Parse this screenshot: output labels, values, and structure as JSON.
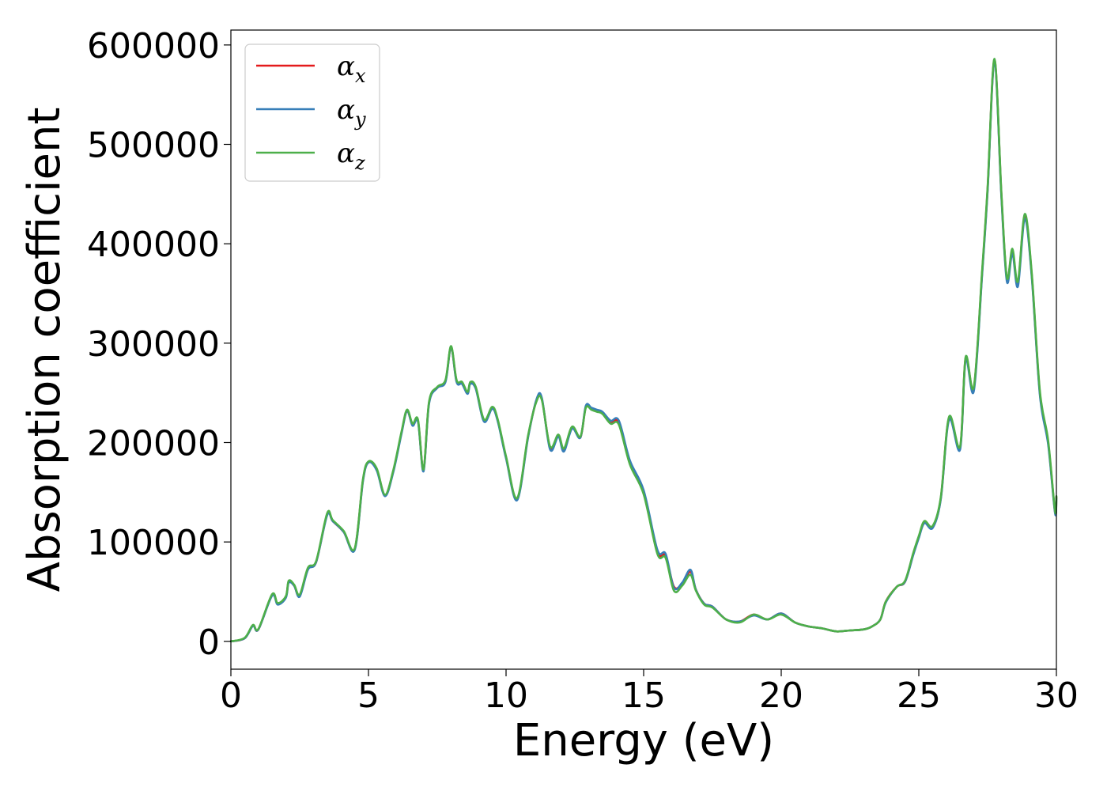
{
  "chart_data": {
    "type": "line",
    "xlabel": "Energy (eV)",
    "ylabel": "Absorption coefficient",
    "xlim": [
      0,
      30
    ],
    "ylim": [
      -28000,
      615000
    ],
    "x_ticks": [
      0,
      5,
      10,
      15,
      20,
      25,
      30
    ],
    "x_tick_labels": [
      "0",
      "5",
      "10",
      "15",
      "20",
      "25",
      "30"
    ],
    "y_ticks": [
      0,
      100000,
      200000,
      300000,
      400000,
      500000,
      600000
    ],
    "y_tick_labels": [
      "0",
      "100000",
      "200000",
      "300000",
      "400000",
      "500000",
      "600000"
    ],
    "grid": false,
    "legend_position": "top-left",
    "legend": [
      {
        "base": "α",
        "sub": "x",
        "color": "#e41a1c"
      },
      {
        "base": "α",
        "sub": "y",
        "color": "#377eb8"
      },
      {
        "base": "α",
        "sub": "z",
        "color": "#4daf4a"
      }
    ],
    "x": [
      0,
      0.5,
      0.8,
      1.0,
      1.5,
      1.7,
      2.0,
      2.1,
      2.3,
      2.5,
      2.8,
      3.1,
      3.5,
      3.7,
      4.1,
      4.5,
      4.8,
      5.0,
      5.3,
      5.6,
      5.9,
      6.2,
      6.4,
      6.6,
      6.8,
      7.0,
      7.2,
      7.5,
      7.8,
      8.0,
      8.2,
      8.4,
      8.6,
      8.7,
      8.9,
      9.2,
      9.5,
      9.7,
      10.0,
      10.4,
      10.8,
      11.1,
      11.3,
      11.6,
      11.9,
      12.1,
      12.4,
      12.7,
      12.9,
      13.1,
      13.3,
      13.5,
      13.8,
      14.1,
      14.5,
      15.0,
      15.5,
      15.8,
      16.1,
      16.4,
      16.7,
      16.9,
      17.2,
      17.5,
      18.0,
      18.5,
      19.0,
      19.5,
      20.0,
      20.5,
      21.0,
      21.5,
      22.0,
      22.5,
      23.0,
      23.3,
      23.6,
      23.8,
      24.2,
      24.5,
      24.8,
      25.0,
      25.2,
      25.5,
      25.8,
      26.1,
      26.5,
      26.7,
      27.0,
      27.3,
      27.5,
      27.75,
      28.0,
      28.2,
      28.4,
      28.6,
      28.85,
      29.1,
      29.4,
      29.7,
      29.95,
      30.0
    ],
    "series": [
      {
        "name": "αx",
        "color": "#e41a1c",
        "values": [
          0,
          3000,
          16000,
          12000,
          47000,
          38000,
          45000,
          60000,
          56000,
          46000,
          73000,
          80000,
          128000,
          121000,
          110000,
          93000,
          162000,
          180000,
          173000,
          147000,
          171000,
          210000,
          232000,
          218000,
          222000,
          172000,
          240000,
          255000,
          262000,
          296000,
          262000,
          260000,
          250000,
          260000,
          255000,
          222000,
          235000,
          222000,
          185000,
          143000,
          206000,
          242000,
          244000,
          195000,
          207000,
          193000,
          215000,
          205000,
          236000,
          234000,
          232000,
          230000,
          220000,
          220000,
          180000,
          150000,
          90000,
          86000,
          55000,
          58000,
          70000,
          52000,
          38000,
          35000,
          22000,
          20000,
          27000,
          22000,
          28000,
          19000,
          15000,
          13000,
          10000,
          11000,
          12000,
          15000,
          22000,
          40000,
          55000,
          60000,
          88000,
          105000,
          120000,
          115000,
          144000,
          225000,
          195000,
          285000,
          255000,
          370000,
          455000,
          585000,
          450000,
          365000,
          393000,
          360000,
          428000,
          370000,
          250000,
          200000,
          130000,
          145000
        ]
      },
      {
        "name": "αy",
        "color": "#377eb8",
        "values": [
          0,
          3000,
          15500,
          12000,
          46000,
          37000,
          44000,
          59000,
          56000,
          45000,
          72000,
          80000,
          127000,
          121000,
          110000,
          92000,
          161000,
          180000,
          172000,
          146000,
          170000,
          209000,
          232000,
          217000,
          221000,
          171000,
          239000,
          255000,
          261000,
          296000,
          261000,
          259000,
          249000,
          259000,
          254000,
          221000,
          234000,
          221000,
          184000,
          142000,
          205000,
          243000,
          245000,
          193000,
          206000,
          191000,
          214000,
          205000,
          237000,
          235000,
          233000,
          231000,
          222000,
          222000,
          182000,
          152000,
          92000,
          88000,
          54000,
          59000,
          72000,
          52000,
          38000,
          35000,
          22000,
          20000,
          26000,
          22000,
          28000,
          19000,
          15000,
          13000,
          10000,
          11000,
          12000,
          15000,
          22000,
          39000,
          55000,
          60000,
          87000,
          104000,
          119000,
          114000,
          143000,
          223000,
          193000,
          283000,
          252000,
          368000,
          453000,
          583000,
          448000,
          362000,
          390000,
          357000,
          425000,
          368000,
          248000,
          198000,
          129000,
          144000
        ]
      },
      {
        "name": "αz",
        "color": "#4daf4a",
        "values": [
          0,
          3500,
          16500,
          12500,
          47500,
          38500,
          45500,
          61000,
          57000,
          47000,
          74000,
          81000,
          129000,
          122000,
          111000,
          93500,
          163000,
          181000,
          174000,
          147500,
          172000,
          211000,
          233000,
          219000,
          223000,
          173000,
          241000,
          256000,
          263000,
          297000,
          263000,
          261000,
          251000,
          261000,
          256000,
          223000,
          236000,
          223000,
          186000,
          144000,
          207000,
          241000,
          243000,
          196000,
          208000,
          194000,
          216000,
          206000,
          235000,
          233000,
          231000,
          229000,
          219000,
          218000,
          178000,
          148000,
          88000,
          84000,
          51000,
          56000,
          67000,
          51000,
          37000,
          34000,
          22000,
          19000,
          27000,
          22000,
          27000,
          19000,
          15000,
          13000,
          10000,
          11000,
          12000,
          15000,
          22000,
          40000,
          55000,
          61000,
          89000,
          106000,
          121000,
          116000,
          145000,
          226000,
          196000,
          286000,
          256000,
          372000,
          457000,
          586000,
          452000,
          366000,
          395000,
          362000,
          430000,
          372000,
          252000,
          202000,
          131000,
          146000
        ]
      }
    ]
  }
}
